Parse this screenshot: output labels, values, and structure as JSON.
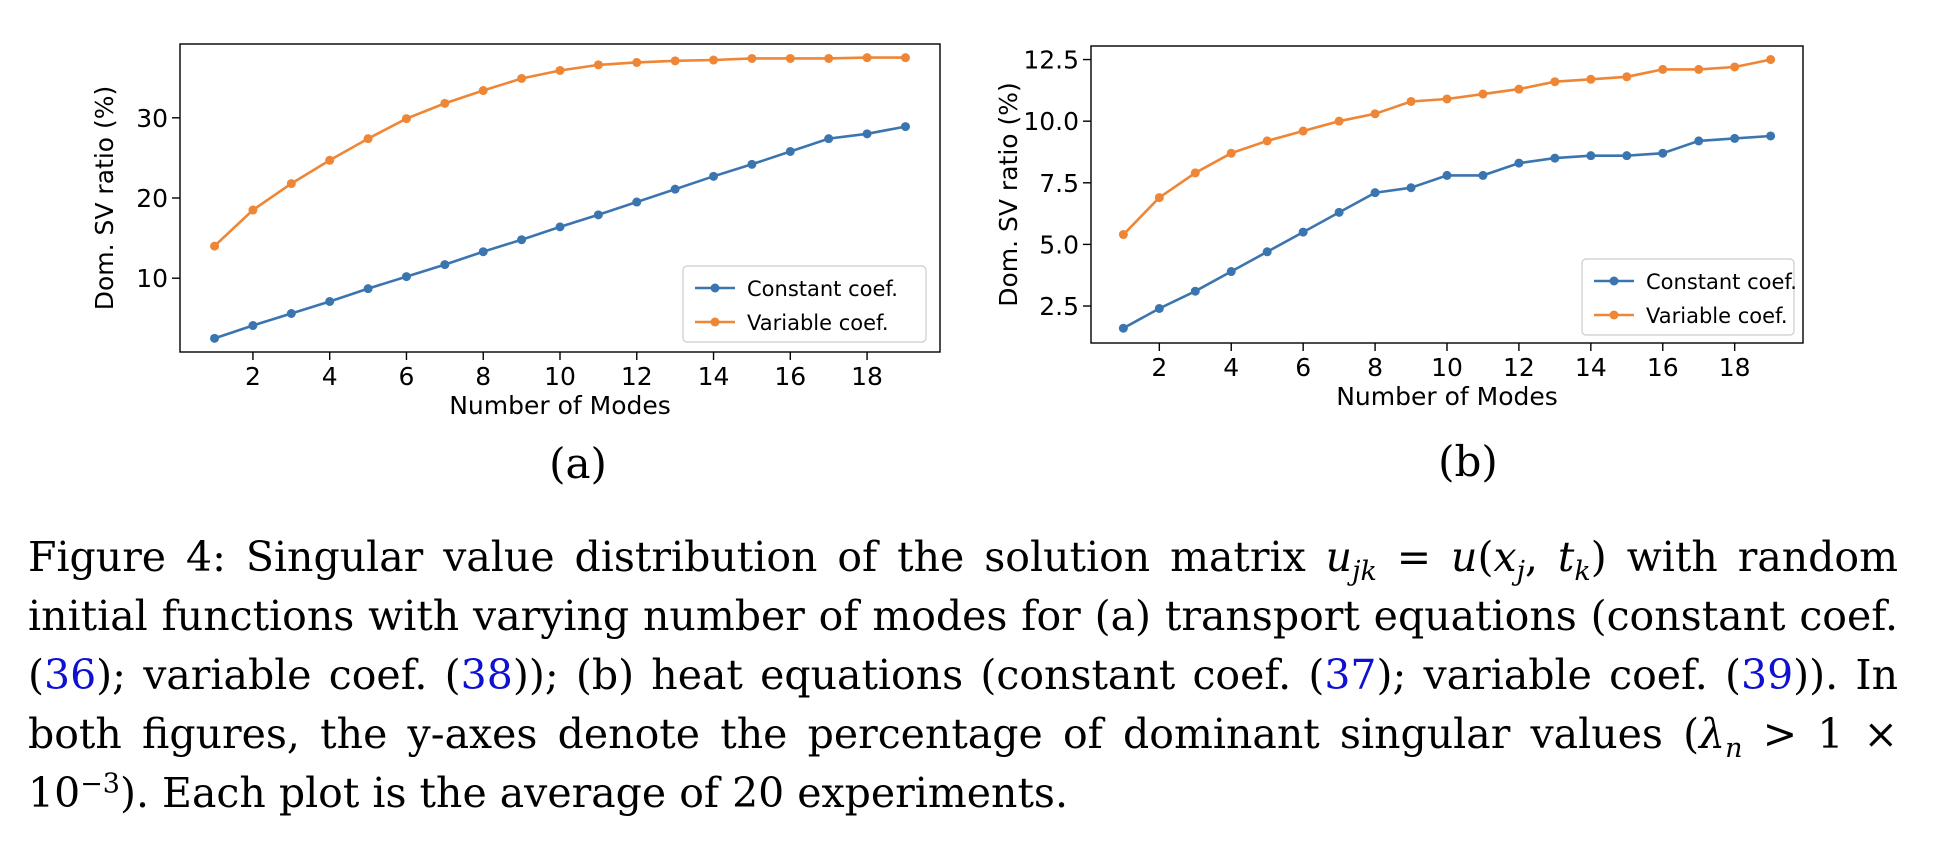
{
  "chart_data": [
    {
      "type": "line",
      "panel": "(a)",
      "xlabel": "Number of Modes",
      "ylabel": "Dom. SV ratio (%)",
      "x": [
        1,
        2,
        3,
        4,
        5,
        6,
        7,
        8,
        9,
        10,
        11,
        12,
        13,
        14,
        15,
        16,
        17,
        18,
        19
      ],
      "xticks": [
        2,
        4,
        6,
        8,
        10,
        12,
        14,
        16,
        18
      ],
      "yticks": [
        10,
        20,
        30
      ],
      "xlim": [
        0.1,
        19.9
      ],
      "ylim": [
        0.8,
        39.2
      ],
      "grid": false,
      "legend_position": "lower-right",
      "series": [
        {
          "name": "Constant coef.",
          "color": "#3b75af",
          "values": [
            2.5,
            4.1,
            5.6,
            7.1,
            8.7,
            10.2,
            11.7,
            13.3,
            14.8,
            16.4,
            17.9,
            19.5,
            21.1,
            22.7,
            24.2,
            25.8,
            27.4,
            28.0,
            28.9
          ]
        },
        {
          "name": "Variable coef.",
          "color": "#ef8636",
          "values": [
            14.0,
            18.5,
            21.8,
            24.7,
            27.4,
            29.9,
            31.8,
            33.4,
            34.9,
            35.9,
            36.6,
            36.9,
            37.1,
            37.2,
            37.4,
            37.4,
            37.4,
            37.5,
            37.5
          ]
        }
      ]
    },
    {
      "type": "line",
      "panel": "(b)",
      "xlabel": "Number of Modes",
      "ylabel": "Dom. SV ratio (%)",
      "x": [
        1,
        2,
        3,
        4,
        5,
        6,
        7,
        8,
        9,
        10,
        11,
        12,
        13,
        14,
        15,
        16,
        17,
        18,
        19
      ],
      "xticks": [
        2,
        4,
        6,
        8,
        10,
        12,
        14,
        16,
        18
      ],
      "yticks": [
        2.5,
        5.0,
        7.5,
        10.0,
        12.5
      ],
      "ytick_labels": [
        "2.5",
        "5.0",
        "7.5",
        "10.0",
        "12.5"
      ],
      "xlim": [
        0.1,
        19.9
      ],
      "ylim": [
        1.0,
        13.05
      ],
      "grid": false,
      "legend_position": "lower-right",
      "series": [
        {
          "name": "Constant coef.",
          "color": "#3b75af",
          "values": [
            1.6,
            2.4,
            3.1,
            3.9,
            4.7,
            5.5,
            6.3,
            7.1,
            7.3,
            7.8,
            7.8,
            8.3,
            8.5,
            8.6,
            8.6,
            8.7,
            9.2,
            9.3,
            9.4
          ]
        },
        {
          "name": "Variable coef.",
          "color": "#ef8636",
          "values": [
            5.4,
            6.9,
            7.9,
            8.7,
            9.2,
            9.6,
            10.0,
            10.3,
            10.8,
            10.9,
            11.1,
            11.3,
            11.6,
            11.7,
            11.8,
            12.1,
            12.1,
            12.2,
            12.5
          ]
        }
      ]
    }
  ],
  "caption": {
    "label": "Figure 4:",
    "t1": " Singular value distribution of the solution matrix ",
    "t2": " with random initial functions with varying number of modes for (a) transport equations (constant coef. (",
    "ref1": "36",
    "t3": "); variable coef. (",
    "ref2": "38",
    "t4": ")); (b) heat equations (constant coef. (",
    "ref3": "37",
    "t5": "); variable coef. (",
    "ref4": "39",
    "t6": ")).  In both figures, the y-axes denote the percentage of dominant singular values (",
    "t7": "). Each plot is the average of 20 experiments."
  }
}
